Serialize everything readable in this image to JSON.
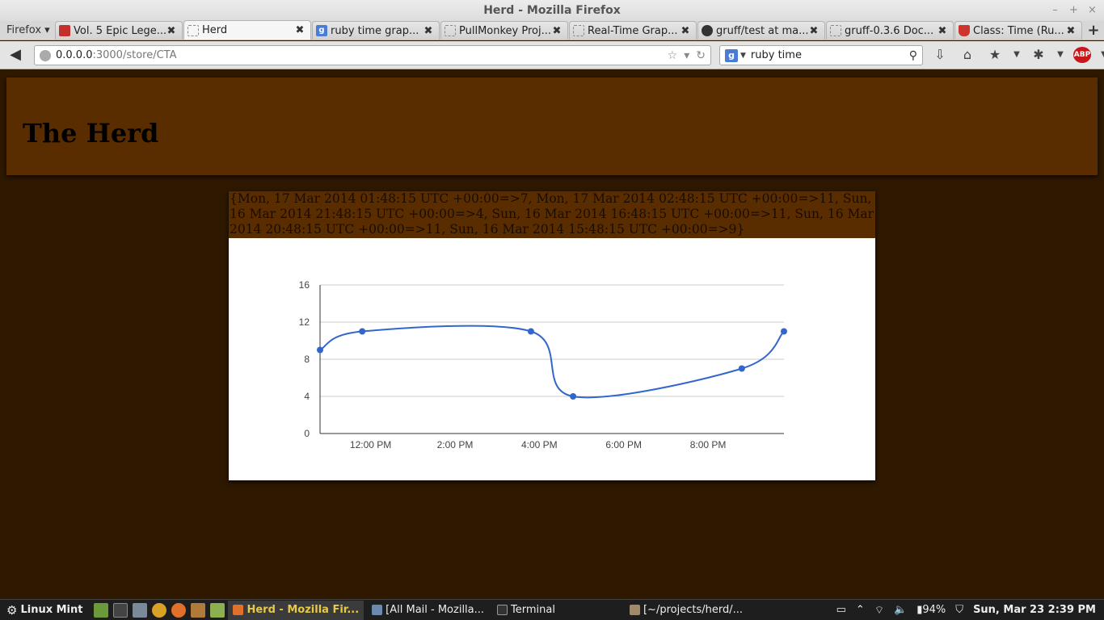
{
  "window": {
    "title": "Herd - Mozilla Firefox"
  },
  "firefox_menu": "Firefox ▾",
  "tabs": [
    {
      "label": "Vol. 5 Epic Lege...",
      "icon": "youtube-icon"
    },
    {
      "label": "Herd",
      "icon": "blank-page-icon"
    },
    {
      "label": "ruby time grap...",
      "icon": "google-icon"
    },
    {
      "label": "PullMonkey Proj...",
      "icon": "blank-page-icon"
    },
    {
      "label": "Real-Time Grap...",
      "icon": "blank-page-icon"
    },
    {
      "label": "gruff/test at ma...",
      "icon": "github-icon"
    },
    {
      "label": "gruff-0.3.6 Doc...",
      "icon": "blank-page-icon"
    },
    {
      "label": "Class: Time (Ru...",
      "icon": "ruby-icon"
    }
  ],
  "urlbar": {
    "host": "0.0.0.0",
    "rest": ":3000/store/CTA"
  },
  "search": {
    "value": "ruby time"
  },
  "page": {
    "heading": "The Herd",
    "hash_text": "{Mon, 17 Mar 2014 01:48:15 UTC +00:00=>7, Mon, 17 Mar 2014 02:48:15 UTC +00:00=>11, Sun, 16 Mar 2014 21:48:15 UTC +00:00=>4, Sun, 16 Mar 2014 16:48:15 UTC +00:00=>11, Sun, 16 Mar 2014 20:48:15 UTC +00:00=>11, Sun, 16 Mar 2014 15:48:15 UTC +00:00=>9}"
  },
  "chart_data": {
    "type": "line",
    "x_tick_labels": [
      "12:00 PM",
      "2:00 PM",
      "4:00 PM",
      "6:00 PM",
      "8:00 PM"
    ],
    "x_tick_hours": [
      12,
      14,
      16,
      18,
      20
    ],
    "x_hours": [
      10.8,
      11.8,
      15.8,
      16.8,
      20.8,
      21.8
    ],
    "values": [
      9,
      11,
      11,
      4,
      7,
      11
    ],
    "y_tick_labels": [
      "0",
      "4",
      "8",
      "12",
      "16"
    ],
    "ylim": [
      0,
      16
    ],
    "xlim": [
      10.8,
      21.8
    ],
    "line_color": "#3366cc",
    "grid": true
  },
  "taskbar": {
    "menu_label": "Linux Mint",
    "windows": [
      {
        "label": "Herd - Mozilla Fir...",
        "active": true
      },
      {
        "label": "[All Mail - Mozilla...",
        "active": false
      },
      {
        "label": "Terminal",
        "active": false
      },
      {
        "label": "[~/projects/herd/...",
        "active": false
      }
    ],
    "battery": "94%",
    "clock": "Sun, Mar 23  2:39 PM"
  }
}
